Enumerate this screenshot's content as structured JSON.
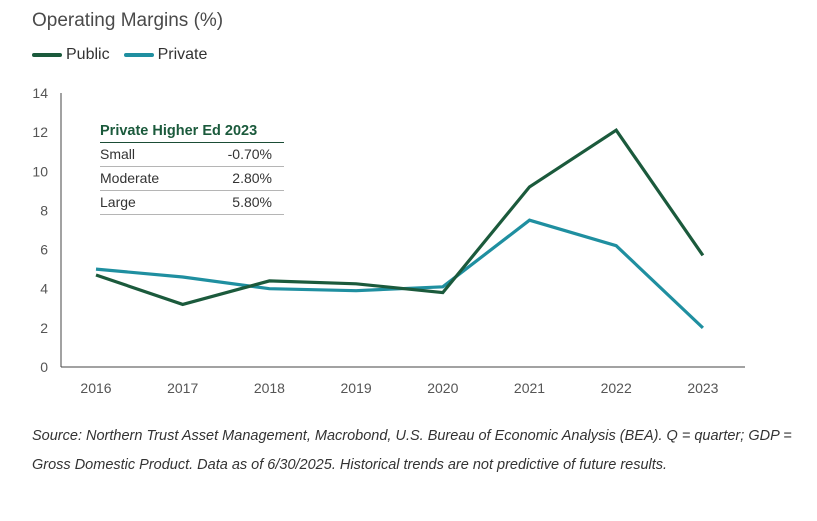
{
  "chart_data": {
    "type": "line",
    "title": "Operating Margins (%)",
    "x": [
      "2016",
      "2017",
      "2018",
      "2019",
      "2020",
      "2021",
      "2022",
      "2023"
    ],
    "series": [
      {
        "name": "Public",
        "values": [
          4.7,
          3.2,
          4.4,
          4.25,
          3.8,
          9.2,
          12.1,
          5.7
        ]
      },
      {
        "name": "Private",
        "values": [
          5.0,
          4.6,
          4.0,
          3.9,
          4.1,
          7.5,
          6.2,
          2.0
        ]
      }
    ],
    "ylim": [
      0,
      14
    ],
    "yticks": [
      0,
      2,
      4,
      6,
      8,
      10,
      12,
      14
    ],
    "legend_position": "top-left",
    "grid": false,
    "colors": {
      "Public": "#1b5a3c",
      "Private": "#1f8fa0"
    }
  },
  "inset_table": {
    "title": "Private Higher Ed 2023",
    "rows": [
      {
        "label": "Small",
        "value": "-0.70%"
      },
      {
        "label": "Moderate",
        "value": "2.80%"
      },
      {
        "label": "Large",
        "value": "5.80%"
      }
    ]
  },
  "source_note": "Source: Northern Trust Asset Management, Macrobond, U.S. Bureau of Economic Analysis (BEA). Q = quarter; GDP = Gross Domestic Product. Data as of 6/30/2025. Historical trends are not predictive of future results."
}
